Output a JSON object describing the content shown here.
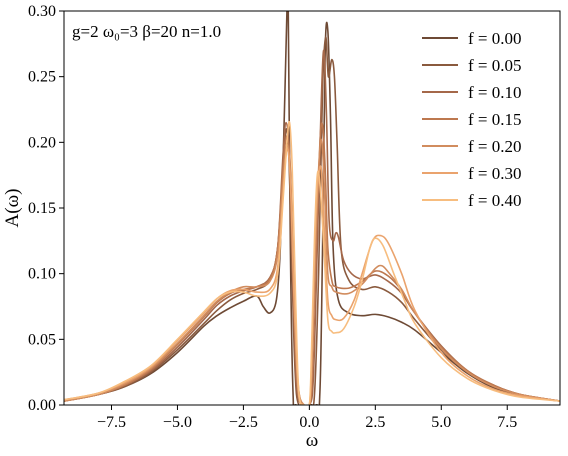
{
  "chart_data": {
    "type": "line",
    "xlabel": "ω",
    "ylabel": "A(ω)",
    "annotation": "g=2 ω₀=3 β=20 n=1.0",
    "xlim": [
      -9.3,
      9.5
    ],
    "ylim": [
      0.0,
      0.3
    ],
    "xticks": [
      -7.5,
      -5.0,
      -2.5,
      0.0,
      2.5,
      5.0,
      7.5
    ],
    "xtick_labels": [
      "−7.5",
      "−5.0",
      "−2.5",
      "0.0",
      "2.5",
      "5.0",
      "7.5"
    ],
    "yticks": [
      0.0,
      0.05,
      0.1,
      0.15,
      0.2,
      0.25,
      0.3
    ],
    "ytick_labels": [
      "0.00",
      "0.05",
      "0.10",
      "0.15",
      "0.20",
      "0.25",
      "0.30"
    ],
    "grid": false,
    "legend_position": "top-right",
    "series": [
      {
        "name": "f = 0.00",
        "color": "#6e4a35",
        "points": [
          [
            -9.3,
            0.003
          ],
          [
            -8,
            0.008
          ],
          [
            -7,
            0.014
          ],
          [
            -6,
            0.024
          ],
          [
            -5,
            0.04
          ],
          [
            -4,
            0.06
          ],
          [
            -3.5,
            0.068
          ],
          [
            -3,
            0.074
          ],
          [
            -2.5,
            0.079
          ],
          [
            -2,
            0.083
          ],
          [
            -1.75,
            0.075
          ],
          [
            -1.5,
            0.07
          ],
          [
            -1.25,
            0.08
          ],
          [
            -1.1,
            0.12
          ],
          [
            -0.95,
            0.22
          ],
          [
            -0.85,
            0.3
          ],
          [
            -0.8,
            0.3
          ],
          [
            -0.72,
            0.12
          ],
          [
            -0.62,
            0.01
          ],
          [
            -0.5,
            0.0
          ],
          [
            0.25,
            0.0
          ],
          [
            0.4,
            0.01
          ],
          [
            0.5,
            0.12
          ],
          [
            0.6,
            0.27
          ],
          [
            0.7,
            0.285
          ],
          [
            0.8,
            0.22
          ],
          [
            0.9,
            0.12
          ],
          [
            1.1,
            0.08
          ],
          [
            1.5,
            0.07
          ],
          [
            2.0,
            0.068
          ],
          [
            2.5,
            0.069
          ],
          [
            3.0,
            0.067
          ],
          [
            3.5,
            0.063
          ],
          [
            4.0,
            0.057
          ],
          [
            5.0,
            0.04
          ],
          [
            6.0,
            0.024
          ],
          [
            7.0,
            0.013
          ],
          [
            8.0,
            0.007
          ],
          [
            9.5,
            0.003
          ]
        ]
      },
      {
        "name": "f = 0.05",
        "color": "#8a5a3e",
        "points": [
          [
            -9.3,
            0.003
          ],
          [
            -8,
            0.008
          ],
          [
            -7,
            0.014
          ],
          [
            -6,
            0.025
          ],
          [
            -5,
            0.042
          ],
          [
            -4,
            0.062
          ],
          [
            -3.5,
            0.072
          ],
          [
            -3,
            0.08
          ],
          [
            -2.5,
            0.085
          ],
          [
            -2,
            0.088
          ],
          [
            -1.5,
            0.095
          ],
          [
            -1.2,
            0.12
          ],
          [
            -1.0,
            0.18
          ],
          [
            -0.88,
            0.21
          ],
          [
            -0.78,
            0.19
          ],
          [
            -0.68,
            0.12
          ],
          [
            -0.55,
            0.03
          ],
          [
            -0.4,
            0.0
          ],
          [
            0.05,
            0.0
          ],
          [
            0.2,
            0.01
          ],
          [
            0.35,
            0.1
          ],
          [
            0.5,
            0.24
          ],
          [
            0.62,
            0.28
          ],
          [
            0.72,
            0.25
          ],
          [
            0.85,
            0.263
          ],
          [
            0.95,
            0.25
          ],
          [
            1.05,
            0.2
          ],
          [
            1.2,
            0.12
          ],
          [
            1.5,
            0.095
          ],
          [
            2.0,
            0.088
          ],
          [
            2.5,
            0.09
          ],
          [
            3.0,
            0.086
          ],
          [
            3.5,
            0.078
          ],
          [
            4.0,
            0.065
          ],
          [
            5.0,
            0.042
          ],
          [
            6.0,
            0.025
          ],
          [
            7.0,
            0.014
          ],
          [
            8.0,
            0.008
          ],
          [
            9.5,
            0.003
          ]
        ]
      },
      {
        "name": "f = 0.10",
        "color": "#a5684a",
        "points": [
          [
            -9.3,
            0.003
          ],
          [
            -8,
            0.008
          ],
          [
            -7,
            0.015
          ],
          [
            -6,
            0.026
          ],
          [
            -5,
            0.044
          ],
          [
            -4,
            0.065
          ],
          [
            -3.5,
            0.076
          ],
          [
            -3,
            0.083
          ],
          [
            -2.5,
            0.087
          ],
          [
            -2,
            0.09
          ],
          [
            -1.5,
            0.097
          ],
          [
            -1.2,
            0.12
          ],
          [
            -1.0,
            0.19
          ],
          [
            -0.88,
            0.215
          ],
          [
            -0.75,
            0.19
          ],
          [
            -0.65,
            0.11
          ],
          [
            -0.5,
            0.02
          ],
          [
            -0.3,
            0.0
          ],
          [
            0.0,
            0.0
          ],
          [
            0.15,
            0.02
          ],
          [
            0.3,
            0.12
          ],
          [
            0.45,
            0.23
          ],
          [
            0.55,
            0.27
          ],
          [
            0.65,
            0.22
          ],
          [
            0.75,
            0.14
          ],
          [
            0.9,
            0.125
          ],
          [
            1.0,
            0.131
          ],
          [
            1.1,
            0.128
          ],
          [
            1.3,
            0.11
          ],
          [
            1.6,
            0.1
          ],
          [
            2.0,
            0.096
          ],
          [
            2.5,
            0.099
          ],
          [
            3.0,
            0.094
          ],
          [
            3.5,
            0.085
          ],
          [
            4.0,
            0.07
          ],
          [
            5.0,
            0.045
          ],
          [
            6.0,
            0.026
          ],
          [
            7.0,
            0.015
          ],
          [
            8.0,
            0.008
          ],
          [
            9.5,
            0.003
          ]
        ]
      },
      {
        "name": "f = 0.15",
        "color": "#bd784f",
        "points": [
          [
            -9.3,
            0.003
          ],
          [
            -8,
            0.008
          ],
          [
            -7,
            0.015
          ],
          [
            -6,
            0.027
          ],
          [
            -5,
            0.046
          ],
          [
            -4,
            0.067
          ],
          [
            -3.5,
            0.078
          ],
          [
            -3,
            0.085
          ],
          [
            -2.5,
            0.088
          ],
          [
            -2,
            0.09
          ],
          [
            -1.5,
            0.096
          ],
          [
            -1.2,
            0.12
          ],
          [
            -1.0,
            0.18
          ],
          [
            -0.85,
            0.205
          ],
          [
            -0.72,
            0.18
          ],
          [
            -0.6,
            0.1
          ],
          [
            -0.45,
            0.02
          ],
          [
            -0.25,
            0.0
          ],
          [
            0.0,
            0.0
          ],
          [
            0.1,
            0.02
          ],
          [
            0.25,
            0.12
          ],
          [
            0.4,
            0.2
          ],
          [
            0.5,
            0.213
          ],
          [
            0.6,
            0.18
          ],
          [
            0.7,
            0.12
          ],
          [
            0.85,
            0.095
          ],
          [
            1.0,
            0.09
          ],
          [
            1.5,
            0.089
          ],
          [
            2.0,
            0.094
          ],
          [
            2.5,
            0.102
          ],
          [
            3.0,
            0.098
          ],
          [
            3.5,
            0.087
          ],
          [
            4.0,
            0.07
          ],
          [
            5.0,
            0.044
          ],
          [
            6.0,
            0.026
          ],
          [
            7.0,
            0.015
          ],
          [
            8.0,
            0.008
          ],
          [
            9.5,
            0.003
          ]
        ]
      },
      {
        "name": "f = 0.20",
        "color": "#d18c5e",
        "points": [
          [
            -9.3,
            0.003
          ],
          [
            -8,
            0.008
          ],
          [
            -7,
            0.016
          ],
          [
            -6,
            0.028
          ],
          [
            -5,
            0.047
          ],
          [
            -4,
            0.068
          ],
          [
            -3.5,
            0.079
          ],
          [
            -3,
            0.086
          ],
          [
            -2.5,
            0.09
          ],
          [
            -2,
            0.09
          ],
          [
            -1.5,
            0.094
          ],
          [
            -1.2,
            0.115
          ],
          [
            -1.0,
            0.17
          ],
          [
            -0.85,
            0.198
          ],
          [
            -0.72,
            0.175
          ],
          [
            -0.58,
            0.09
          ],
          [
            -0.42,
            0.015
          ],
          [
            -0.2,
            0.0
          ],
          [
            0.0,
            0.0
          ],
          [
            0.1,
            0.03
          ],
          [
            0.25,
            0.13
          ],
          [
            0.38,
            0.19
          ],
          [
            0.48,
            0.2
          ],
          [
            0.58,
            0.16
          ],
          [
            0.7,
            0.1
          ],
          [
            0.85,
            0.09
          ],
          [
            1.0,
            0.086
          ],
          [
            1.5,
            0.085
          ],
          [
            2.0,
            0.092
          ],
          [
            2.5,
            0.104
          ],
          [
            2.75,
            0.106
          ],
          [
            3.0,
            0.101
          ],
          [
            3.5,
            0.088
          ],
          [
            4.0,
            0.07
          ],
          [
            5.0,
            0.043
          ],
          [
            6.0,
            0.025
          ],
          [
            7.0,
            0.014
          ],
          [
            8.0,
            0.008
          ],
          [
            9.5,
            0.003
          ]
        ]
      },
      {
        "name": "f = 0.30",
        "color": "#eaa36d",
        "points": [
          [
            -9.3,
            0.004
          ],
          [
            -8,
            0.009
          ],
          [
            -7,
            0.017
          ],
          [
            -6,
            0.029
          ],
          [
            -5,
            0.049
          ],
          [
            -4,
            0.07
          ],
          [
            -3.5,
            0.081
          ],
          [
            -3,
            0.087
          ],
          [
            -2.5,
            0.088
          ],
          [
            -2,
            0.086
          ],
          [
            -1.5,
            0.088
          ],
          [
            -1.2,
            0.105
          ],
          [
            -1.0,
            0.16
          ],
          [
            -0.85,
            0.195
          ],
          [
            -0.72,
            0.17
          ],
          [
            -0.58,
            0.08
          ],
          [
            -0.42,
            0.01
          ],
          [
            -0.2,
            0.0
          ],
          [
            0.0,
            0.0
          ],
          [
            0.08,
            0.03
          ],
          [
            0.2,
            0.12
          ],
          [
            0.33,
            0.17
          ],
          [
            0.45,
            0.18
          ],
          [
            0.55,
            0.14
          ],
          [
            0.7,
            0.08
          ],
          [
            0.85,
            0.068
          ],
          [
            1.0,
            0.065
          ],
          [
            1.3,
            0.066
          ],
          [
            1.7,
            0.08
          ],
          [
            2.0,
            0.1
          ],
          [
            2.4,
            0.125
          ],
          [
            2.7,
            0.129
          ],
          [
            3.0,
            0.123
          ],
          [
            3.5,
            0.1
          ],
          [
            4.0,
            0.072
          ],
          [
            5.0,
            0.04
          ],
          [
            6.0,
            0.022
          ],
          [
            7.0,
            0.012
          ],
          [
            8.0,
            0.007
          ],
          [
            9.5,
            0.003
          ]
        ]
      },
      {
        "name": "f = 0.40",
        "color": "#f7bd7f",
        "points": [
          [
            -9.3,
            0.004
          ],
          [
            -8,
            0.009
          ],
          [
            -7,
            0.018
          ],
          [
            -6,
            0.03
          ],
          [
            -5,
            0.05
          ],
          [
            -4,
            0.071
          ],
          [
            -3.5,
            0.081
          ],
          [
            -3,
            0.086
          ],
          [
            -2.5,
            0.086
          ],
          [
            -2,
            0.083
          ],
          [
            -1.5,
            0.085
          ],
          [
            -1.2,
            0.1
          ],
          [
            -1.0,
            0.155
          ],
          [
            -0.85,
            0.2
          ],
          [
            -0.75,
            0.215
          ],
          [
            -0.65,
            0.18
          ],
          [
            -0.52,
            0.08
          ],
          [
            -0.4,
            0.01
          ],
          [
            -0.2,
            0.0
          ],
          [
            0.0,
            0.0
          ],
          [
            0.08,
            0.04
          ],
          [
            0.2,
            0.13
          ],
          [
            0.3,
            0.175
          ],
          [
            0.4,
            0.168
          ],
          [
            0.55,
            0.12
          ],
          [
            0.7,
            0.065
          ],
          [
            0.85,
            0.056
          ],
          [
            1.0,
            0.055
          ],
          [
            1.3,
            0.058
          ],
          [
            1.7,
            0.075
          ],
          [
            2.0,
            0.095
          ],
          [
            2.3,
            0.12
          ],
          [
            2.5,
            0.127
          ],
          [
            2.8,
            0.121
          ],
          [
            3.2,
            0.1
          ],
          [
            3.6,
            0.08
          ],
          [
            4.0,
            0.062
          ],
          [
            5.0,
            0.036
          ],
          [
            6.0,
            0.02
          ],
          [
            7.0,
            0.011
          ],
          [
            8.0,
            0.006
          ],
          [
            9.5,
            0.003
          ]
        ]
      }
    ]
  }
}
